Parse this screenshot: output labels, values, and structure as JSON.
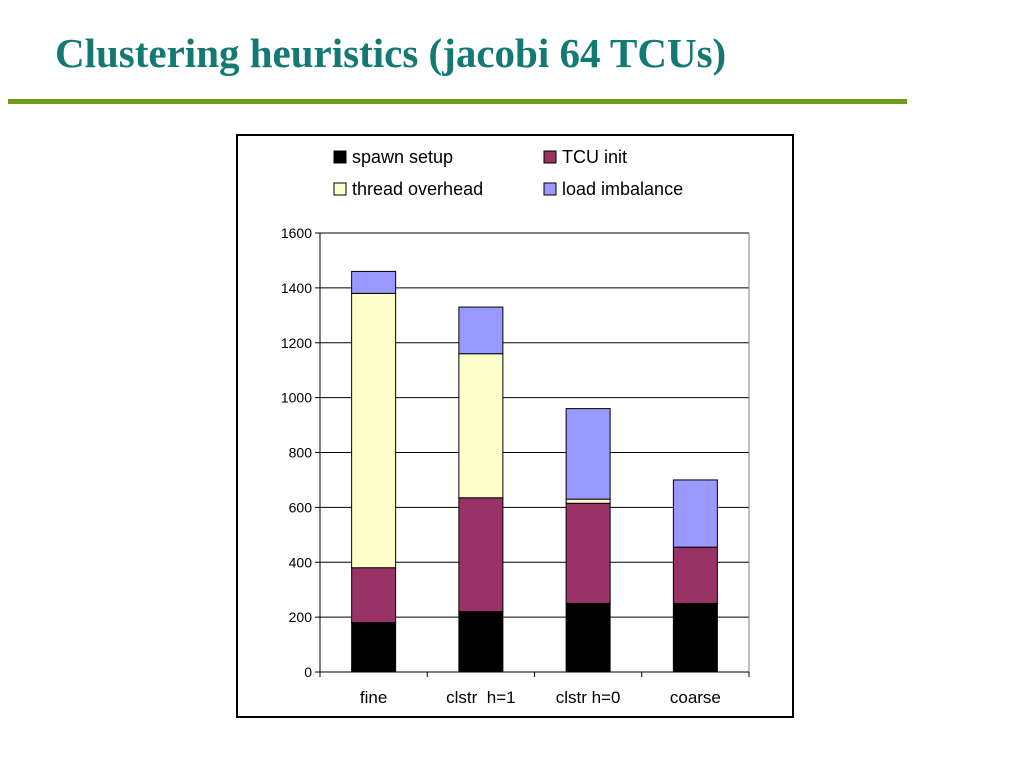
{
  "slide": {
    "title": "Clustering heuristics (jacobi 64 TCUs)"
  },
  "colors": {
    "title": "#127a72",
    "rule": "#6e9a1c"
  },
  "chart_data": {
    "type": "bar",
    "stacked": true,
    "categories": [
      "fine",
      "clstr  h=1",
      "clstr h=0",
      "coarse"
    ],
    "series": [
      {
        "name": "spawn setup",
        "color": "#000000",
        "values": [
          180,
          220,
          250,
          250
        ]
      },
      {
        "name": "TCU init",
        "color": "#993366",
        "values": [
          200,
          415,
          365,
          205
        ]
      },
      {
        "name": "thread overhead",
        "color": "#ffffcc",
        "values": [
          1000,
          525,
          15,
          0
        ]
      },
      {
        "name": "load imbalance",
        "color": "#9999ff",
        "values": [
          80,
          170,
          330,
          245
        ]
      }
    ],
    "ylim": [
      0,
      1600
    ],
    "yticks": [
      0,
      200,
      400,
      600,
      800,
      1000,
      1200,
      1400,
      1600
    ],
    "grid": true,
    "legend_position": "top",
    "title": "",
    "xlabel": "",
    "ylabel": ""
  }
}
